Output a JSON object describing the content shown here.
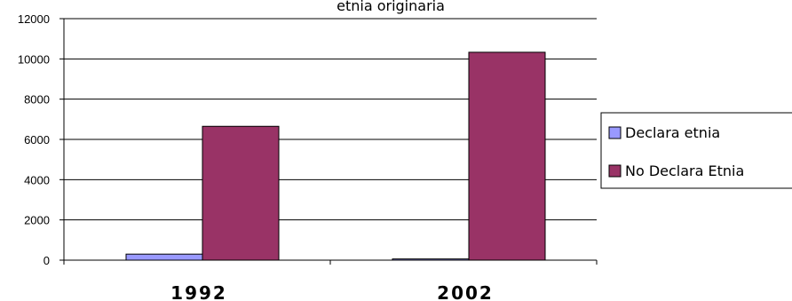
{
  "chart_data": {
    "type": "bar",
    "title": "etnia originaria",
    "categories": [
      "1992",
      "2002"
    ],
    "series": [
      {
        "name": "Declara etnia",
        "values": [
          300,
          60
        ],
        "color": "#9999ff"
      },
      {
        "name": "No Declara Etnia",
        "values": [
          6650,
          10330
        ],
        "color": "#993366"
      }
    ],
    "ylim": [
      0,
      12000
    ],
    "yticks": [
      "0",
      "2000",
      "4000",
      "6000",
      "8000",
      "10000",
      "12000"
    ],
    "xlabel": "",
    "ylabel": "",
    "grid": true,
    "legend_position": "right"
  }
}
